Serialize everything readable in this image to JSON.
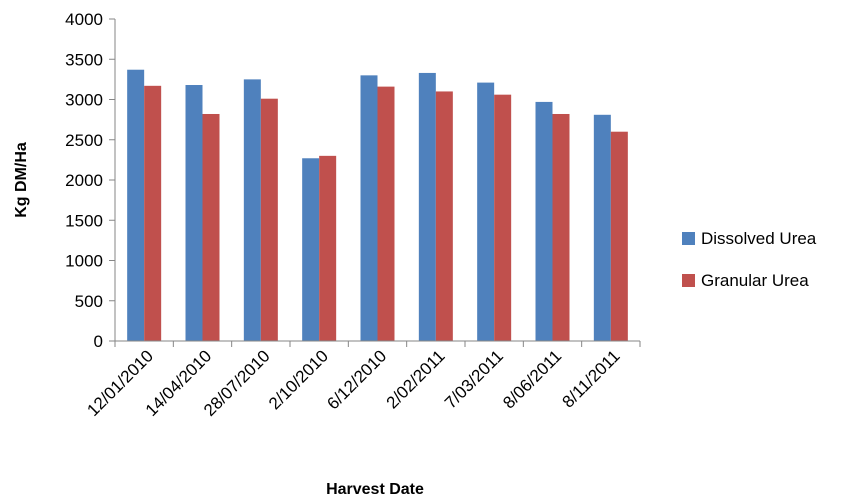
{
  "chart_data": {
    "type": "bar",
    "title": "",
    "xlabel": "Harvest Date",
    "ylabel": "Kg DM/Ha",
    "ylim": [
      0,
      4000
    ],
    "yticks": [
      0,
      500,
      1000,
      1500,
      2000,
      2500,
      3000,
      3500,
      4000
    ],
    "grid": false,
    "legend_position": "right",
    "categories": [
      "12/01/2010",
      "14/04/2010",
      "28/07/2010",
      "2/10/2010",
      "6/12/2010",
      "2/02/2011",
      "7/03/2011",
      "8/06/2011",
      "8/11/2011"
    ],
    "series": [
      {
        "name": "Dissolved Urea",
        "color": "#4F81BD",
        "values": [
          3370,
          3180,
          3250,
          2270,
          3300,
          3330,
          3210,
          2970,
          2810
        ]
      },
      {
        "name": "Granular Urea",
        "color": "#C0504D",
        "values": [
          3170,
          2820,
          3010,
          2300,
          3160,
          3100,
          3060,
          2820,
          2600
        ]
      }
    ]
  }
}
